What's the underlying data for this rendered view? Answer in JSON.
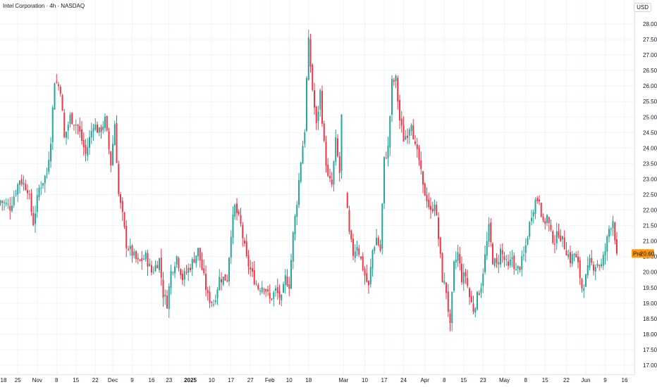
{
  "header": {
    "title": "Intel Corporation · 4h · NASDAQ",
    "currency": "USD"
  },
  "price_badge": {
    "label": "Pre",
    "value": "20.60"
  },
  "colors": {
    "up": "#26a69a",
    "down": "#f23645",
    "badge": "#ff9800",
    "grid": "#f0f3fa"
  },
  "chart_data": {
    "type": "candlestick",
    "title": "Intel Corporation · 4h · NASDAQ",
    "ylabel": "USD",
    "ylim": [
      16.85,
      28.25
    ],
    "y_ticks": [
      "17.00",
      "17.50",
      "18.00",
      "18.50",
      "19.00",
      "19.50",
      "20.00",
      "20.50",
      "21.00",
      "21.50",
      "22.00",
      "22.50",
      "23.00",
      "23.50",
      "24.00",
      "24.50",
      "25.00",
      "25.50",
      "26.00",
      "26.50",
      "27.00",
      "27.50",
      "28.00"
    ],
    "x_ticks": [
      {
        "label": "18",
        "i": 0,
        "bold": false
      },
      {
        "label": "25",
        "i": 9,
        "bold": false
      },
      {
        "label": "Nov",
        "i": 19,
        "bold": false
      },
      {
        "label": "8",
        "i": 29,
        "bold": false
      },
      {
        "label": "15",
        "i": 39,
        "bold": false
      },
      {
        "label": "22",
        "i": 49,
        "bold": false
      },
      {
        "label": "Dec",
        "i": 58,
        "bold": false
      },
      {
        "label": "9",
        "i": 68,
        "bold": false
      },
      {
        "label": "16",
        "i": 78,
        "bold": false
      },
      {
        "label": "23",
        "i": 87,
        "bold": false
      },
      {
        "label": "2025",
        "i": 98,
        "bold": true
      },
      {
        "label": "10",
        "i": 109,
        "bold": false
      },
      {
        "label": "17",
        "i": 119,
        "bold": false
      },
      {
        "label": "27",
        "i": 129,
        "bold": false
      },
      {
        "label": "Feb",
        "i": 139,
        "bold": false
      },
      {
        "label": "10",
        "i": 149,
        "bold": false
      },
      {
        "label": "18",
        "i": 159,
        "bold": false
      },
      {
        "label": "Mar",
        "i": 177,
        "bold": false
      },
      {
        "label": "10",
        "i": 188,
        "bold": false
      },
      {
        "label": "17",
        "i": 198,
        "bold": false
      },
      {
        "label": "24",
        "i": 208,
        "bold": false
      },
      {
        "label": "Apr",
        "i": 219,
        "bold": false
      },
      {
        "label": "8",
        "i": 229,
        "bold": false
      },
      {
        "label": "15",
        "i": 239,
        "bold": false
      },
      {
        "label": "23",
        "i": 249,
        "bold": false
      },
      {
        "label": "May",
        "i": 260,
        "bold": false
      },
      {
        "label": "8",
        "i": 271,
        "bold": false
      },
      {
        "label": "15",
        "i": 281,
        "bold": false
      },
      {
        "label": "22",
        "i": 292,
        "bold": false
      },
      {
        "label": "Jun",
        "i": 302,
        "bold": false
      },
      {
        "label": "9",
        "i": 312,
        "bold": false
      },
      {
        "label": "16",
        "i": 322,
        "bold": false
      }
    ],
    "last_price": 20.6,
    "anchors": [
      [
        0,
        22.3
      ],
      [
        5,
        22.1
      ],
      [
        10,
        23.0
      ],
      [
        14,
        22.7
      ],
      [
        17,
        21.6
      ],
      [
        20,
        22.7
      ],
      [
        24,
        23.2
      ],
      [
        26,
        24.3
      ],
      [
        28,
        26.2
      ],
      [
        31,
        25.9
      ],
      [
        33,
        24.3
      ],
      [
        36,
        25.0
      ],
      [
        40,
        24.7
      ],
      [
        44,
        23.8
      ],
      [
        48,
        24.8
      ],
      [
        51,
        24.5
      ],
      [
        54,
        24.9
      ],
      [
        57,
        23.5
      ],
      [
        59,
        24.8
      ],
      [
        61,
        22.5
      ],
      [
        63,
        21.8
      ],
      [
        65,
        20.9
      ],
      [
        68,
        20.6
      ],
      [
        71,
        20.3
      ],
      [
        75,
        20.5
      ],
      [
        78,
        20.0
      ],
      [
        82,
        20.4
      ],
      [
        84,
        19.3
      ],
      [
        86,
        19.0
      ],
      [
        88,
        20.0
      ],
      [
        91,
        20.5
      ],
      [
        94,
        19.8
      ],
      [
        98,
        20.2
      ],
      [
        102,
        20.7
      ],
      [
        104,
        20.1
      ],
      [
        107,
        19.2
      ],
      [
        110,
        19.0
      ],
      [
        113,
        19.8
      ],
      [
        117,
        19.8
      ],
      [
        119,
        21.3
      ],
      [
        121,
        22.1
      ],
      [
        124,
        21.5
      ],
      [
        127,
        20.4
      ],
      [
        130,
        19.9
      ],
      [
        133,
        19.5
      ],
      [
        136,
        19.6
      ],
      [
        139,
        19.1
      ],
      [
        142,
        19.4
      ],
      [
        145,
        19.1
      ],
      [
        147,
        19.8
      ],
      [
        149,
        19.6
      ],
      [
        151,
        21.2
      ],
      [
        153,
        22.3
      ],
      [
        155,
        23.6
      ],
      [
        157,
        24.6
      ],
      [
        158,
        26.2
      ],
      [
        159,
        27.4
      ],
      [
        161,
        25.9
      ],
      [
        163,
        24.7
      ],
      [
        165,
        25.8
      ],
      [
        167,
        24.1
      ],
      [
        169,
        23.0
      ],
      [
        171,
        22.8
      ],
      [
        173,
        24.2
      ],
      [
        175,
        23.2
      ],
      [
        176,
        25.0
      ],
      [
        178,
        22.6
      ],
      [
        180,
        21.2
      ],
      [
        182,
        20.6
      ],
      [
        184,
        20.9
      ],
      [
        186,
        20.4
      ],
      [
        188,
        19.9
      ],
      [
        190,
        19.5
      ],
      [
        192,
        20.7
      ],
      [
        194,
        21.1
      ],
      [
        196,
        20.7
      ],
      [
        198,
        23.6
      ],
      [
        200,
        24.0
      ],
      [
        202,
        26.1
      ],
      [
        204,
        26.2
      ],
      [
        206,
        24.9
      ],
      [
        208,
        24.3
      ],
      [
        210,
        24.5
      ],
      [
        212,
        24.9
      ],
      [
        214,
        24.0
      ],
      [
        216,
        23.6
      ],
      [
        218,
        22.7
      ],
      [
        220,
        22.4
      ],
      [
        222,
        21.9
      ],
      [
        224,
        22.3
      ],
      [
        226,
        21.1
      ],
      [
        228,
        19.8
      ],
      [
        230,
        19.4
      ],
      [
        232,
        18.2
      ],
      [
        234,
        20.2
      ],
      [
        236,
        20.6
      ],
      [
        238,
        19.8
      ],
      [
        240,
        19.9
      ],
      [
        242,
        19.2
      ],
      [
        244,
        18.8
      ],
      [
        246,
        19.2
      ],
      [
        248,
        19.6
      ],
      [
        250,
        20.5
      ],
      [
        252,
        21.4
      ],
      [
        254,
        20.4
      ],
      [
        256,
        20.2
      ],
      [
        258,
        20.7
      ],
      [
        260,
        20.4
      ],
      [
        262,
        20.1
      ],
      [
        264,
        20.5
      ],
      [
        266,
        20.0
      ],
      [
        268,
        20.2
      ],
      [
        270,
        20.5
      ],
      [
        272,
        21.2
      ],
      [
        274,
        21.9
      ],
      [
        276,
        22.3
      ],
      [
        278,
        22.4
      ],
      [
        280,
        21.5
      ],
      [
        282,
        21.8
      ],
      [
        284,
        21.2
      ],
      [
        286,
        21.0
      ],
      [
        288,
        21.3
      ],
      [
        290,
        21.0
      ],
      [
        292,
        20.7
      ],
      [
        294,
        20.4
      ],
      [
        296,
        20.6
      ],
      [
        298,
        20.2
      ],
      [
        300,
        19.5
      ],
      [
        302,
        19.8
      ],
      [
        304,
        20.3
      ],
      [
        306,
        20.2
      ],
      [
        308,
        20.3
      ],
      [
        310,
        20.2
      ],
      [
        312,
        20.7
      ],
      [
        314,
        21.4
      ],
      [
        316,
        21.7
      ],
      [
        318,
        20.6
      ]
    ]
  }
}
